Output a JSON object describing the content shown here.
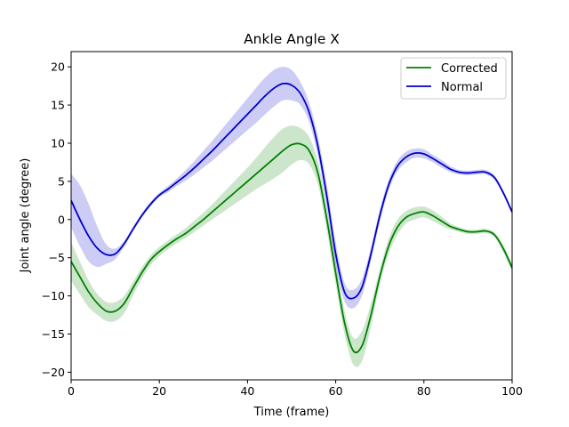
{
  "chart_data": {
    "type": "line",
    "title": "Ankle Angle X",
    "xlabel": "Time (frame)",
    "ylabel": "Joint angle (degree)",
    "xlim": [
      0,
      100
    ],
    "ylim": [
      -21,
      22
    ],
    "xticks": [
      0,
      20,
      40,
      60,
      80,
      100
    ],
    "yticks": [
      -20,
      -15,
      -10,
      -5,
      0,
      5,
      10,
      15,
      20
    ],
    "grid": false,
    "legend_position": "top-right",
    "x": [
      0,
      2,
      4,
      6,
      8,
      10,
      12,
      14,
      16,
      18,
      20,
      22,
      24,
      26,
      28,
      30,
      32,
      34,
      36,
      38,
      40,
      42,
      44,
      46,
      48,
      50,
      52,
      54,
      56,
      58,
      60,
      62,
      64,
      66,
      68,
      70,
      72,
      74,
      76,
      78,
      80,
      82,
      84,
      86,
      88,
      90,
      92,
      94,
      96,
      98,
      100
    ],
    "series": [
      {
        "name": "Corrected",
        "color": "#008000",
        "values": [
          -5.5,
          -7.5,
          -9.5,
          -11.0,
          -12.0,
          -12.0,
          -11.0,
          -9.0,
          -7.0,
          -5.3,
          -4.2,
          -3.3,
          -2.5,
          -1.8,
          -0.9,
          0.0,
          1.0,
          2.0,
          3.0,
          4.0,
          5.0,
          6.0,
          7.0,
          8.0,
          9.0,
          9.8,
          9.9,
          9.0,
          6.0,
          0.0,
          -7.0,
          -13.5,
          -17.2,
          -16.5,
          -12.5,
          -7.5,
          -3.5,
          -1.0,
          0.3,
          0.8,
          1.0,
          0.5,
          -0.2,
          -0.9,
          -1.3,
          -1.6,
          -1.6,
          -1.5,
          -2.0,
          -3.8,
          -6.3
        ],
        "upper": [
          -3.0,
          -5.5,
          -8.0,
          -9.8,
          -10.8,
          -10.8,
          -10.0,
          -8.2,
          -6.3,
          -4.7,
          -3.6,
          -2.7,
          -1.9,
          -1.1,
          -0.1,
          0.9,
          2.0,
          3.2,
          4.4,
          5.6,
          6.8,
          8.1,
          9.5,
          10.8,
          11.9,
          12.3,
          12.0,
          10.8,
          7.5,
          1.5,
          -5.5,
          -12.0,
          -15.5,
          -14.5,
          -11.0,
          -6.5,
          -2.5,
          0.0,
          1.1,
          1.6,
          1.7,
          1.2,
          0.4,
          -0.5,
          -1.0,
          -1.3,
          -1.3,
          -1.2,
          -1.7,
          -3.3,
          -5.8
        ],
        "lower": [
          -8.0,
          -9.8,
          -11.5,
          -12.5,
          -13.3,
          -13.3,
          -12.3,
          -10.0,
          -7.8,
          -6.0,
          -4.8,
          -3.9,
          -3.1,
          -2.4,
          -1.6,
          -0.8,
          0.0,
          0.8,
          1.6,
          2.4,
          3.2,
          4.0,
          4.7,
          5.4,
          6.2,
          7.2,
          7.8,
          7.2,
          4.5,
          -1.5,
          -8.5,
          -15.0,
          -19.0,
          -18.5,
          -14.0,
          -8.5,
          -4.5,
          -2.0,
          -0.5,
          0.0,
          0.3,
          -0.2,
          -0.8,
          -1.3,
          -1.6,
          -1.9,
          -1.9,
          -1.8,
          -2.3,
          -4.3,
          -6.8
        ]
      },
      {
        "name": "Normal",
        "color": "#0000cc",
        "values": [
          2.5,
          0.0,
          -2.2,
          -3.8,
          -4.6,
          -4.5,
          -3.2,
          -1.3,
          0.5,
          2.0,
          3.2,
          4.0,
          4.9,
          5.8,
          6.8,
          7.9,
          9.0,
          10.2,
          11.4,
          12.6,
          13.8,
          15.0,
          16.2,
          17.2,
          17.8,
          17.6,
          16.5,
          14.0,
          9.5,
          3.0,
          -4.5,
          -9.5,
          -10.3,
          -8.8,
          -4.5,
          0.5,
          4.5,
          7.0,
          8.2,
          8.7,
          8.6,
          8.0,
          7.3,
          6.6,
          6.2,
          6.1,
          6.2,
          6.2,
          5.5,
          3.5,
          1.0
        ],
        "upper": [
          6.0,
          4.5,
          2.0,
          -1.0,
          -3.3,
          -3.8,
          -2.8,
          -1.0,
          0.8,
          2.3,
          3.5,
          4.4,
          5.4,
          6.5,
          7.7,
          9.0,
          10.3,
          11.7,
          13.1,
          14.5,
          15.9,
          17.3,
          18.6,
          19.6,
          20.0,
          19.6,
          18.0,
          15.3,
          10.8,
          4.5,
          -3.0,
          -8.3,
          -9.2,
          -7.7,
          -3.6,
          1.3,
          5.2,
          7.7,
          8.9,
          9.3,
          9.2,
          8.5,
          7.8,
          7.0,
          6.5,
          6.4,
          6.5,
          6.5,
          5.8,
          3.8,
          1.3
        ],
        "lower": [
          -1.0,
          -3.5,
          -5.5,
          -6.2,
          -5.8,
          -5.2,
          -3.6,
          -1.6,
          0.2,
          1.7,
          2.9,
          3.6,
          4.4,
          5.1,
          5.9,
          6.8,
          7.7,
          8.7,
          9.7,
          10.7,
          11.7,
          12.7,
          13.8,
          14.8,
          15.6,
          15.6,
          15.0,
          12.7,
          8.2,
          1.5,
          -6.0,
          -10.7,
          -11.6,
          -9.9,
          -5.4,
          -0.3,
          3.8,
          6.3,
          7.5,
          8.1,
          8.0,
          7.5,
          6.8,
          6.2,
          5.9,
          5.8,
          5.9,
          5.9,
          5.2,
          3.2,
          0.7
        ]
      }
    ]
  }
}
